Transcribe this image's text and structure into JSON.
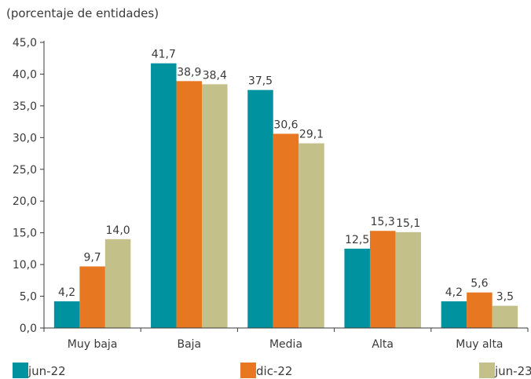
{
  "chart_data": {
    "type": "bar",
    "unit_label": "(porcentaje de entidades)",
    "categories": [
      "Muy baja",
      "Baja",
      "Media",
      "Alta",
      "Muy alta"
    ],
    "series": [
      {
        "name": "jun-22",
        "color": "#00929f",
        "values": [
          4.2,
          41.7,
          37.5,
          12.5,
          4.2
        ],
        "labels": [
          "4,2",
          "41,7",
          "37,5",
          "12,5",
          "4,2"
        ]
      },
      {
        "name": "dic-22",
        "color": "#e87722",
        "values": [
          9.7,
          38.9,
          30.6,
          15.3,
          5.6
        ],
        "labels": [
          "9,7",
          "38,9",
          "30,6",
          "15,3",
          "5,6"
        ]
      },
      {
        "name": "jun-23",
        "color": "#c4c08a",
        "values": [
          14.0,
          38.4,
          29.1,
          15.1,
          3.5
        ],
        "labels": [
          "14,0",
          "38,4",
          "29,1",
          "15,1",
          "3,5"
        ]
      }
    ],
    "ylim": [
      0,
      45
    ],
    "yticks": [
      0,
      5,
      10,
      15,
      20,
      25,
      30,
      35,
      40,
      45
    ],
    "ytick_labels": [
      "0,0",
      "5,0",
      "10,0",
      "15,0",
      "20,0",
      "25,0",
      "30,0",
      "35,0",
      "40,0",
      "45,0"
    ],
    "grid": false,
    "legend_position": "bottom"
  }
}
